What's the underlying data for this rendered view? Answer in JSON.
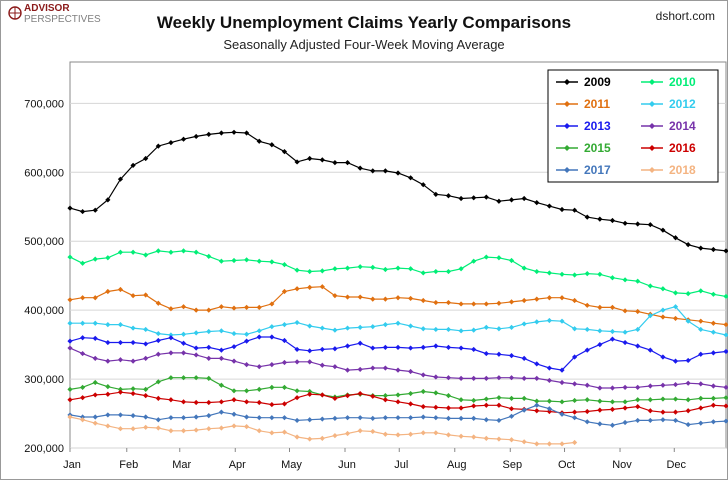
{
  "brand": {
    "line1": "ADVISOR",
    "line2": "PERSPECTIVES",
    "source": "dshort.com"
  },
  "colors": {
    "background": "#ffffff",
    "frame": "#999999",
    "brand_red": "#8b1a1a",
    "brand_gray": "#7f7f7f"
  },
  "chart_data": {
    "type": "line",
    "title": "Weekly Unemployment Claims Yearly Comparisons",
    "subtitle": "Seasonally Adjusted Four-Week Moving Average",
    "xlabel": "",
    "ylabel": "",
    "x_ticks": [
      "Jan",
      "Feb",
      "Mar",
      "Apr",
      "May",
      "Jun",
      "Jul",
      "Aug",
      "Sep",
      "Oct",
      "Nov",
      "Dec"
    ],
    "xlim": [
      1,
      53
    ],
    "ylim": [
      200000,
      760000
    ],
    "y_ticks": [
      200000,
      300000,
      400000,
      500000,
      600000,
      700000
    ],
    "y_tick_labels": [
      "200,000",
      "300,000",
      "400,000",
      "500,000",
      "600,000",
      "700,000"
    ],
    "grid": true,
    "legend_position": "top-right",
    "series": [
      {
        "name": "2009",
        "color": "#000000",
        "values": [
          548000,
          543000,
          545000,
          560000,
          590000,
          610000,
          620000,
          638000,
          643000,
          648000,
          652000,
          655000,
          657000,
          658000,
          657000,
          645000,
          640000,
          630000,
          615000,
          620000,
          618000,
          614000,
          614000,
          606000,
          602000,
          602000,
          599000,
          592000,
          582000,
          568000,
          566000,
          562000,
          563000,
          564000,
          558000,
          560000,
          562000,
          556000,
          551000,
          546000,
          545000,
          535000,
          532000,
          530000,
          526000,
          525000,
          524000,
          516000,
          505000,
          495000,
          490000,
          488000,
          486000,
          483000,
          474000
        ]
      },
      {
        "name": "2010",
        "color": "#00ee77",
        "values": [
          477000,
          468000,
          474000,
          476000,
          484000,
          484000,
          480000,
          486000,
          484000,
          486000,
          484000,
          478000,
          471000,
          472000,
          473000,
          471000,
          470000,
          466000,
          458000,
          456000,
          457000,
          460000,
          461000,
          463000,
          462000,
          459000,
          461000,
          460000,
          454000,
          456000,
          456000,
          460000,
          471000,
          477000,
          476000,
          472000,
          461000,
          456000,
          454000,
          452000,
          451000,
          453000,
          452000,
          447000,
          444000,
          442000,
          435000,
          431000,
          425000,
          424000,
          428000,
          423000,
          420000,
          414000,
          412000
        ]
      },
      {
        "name": "2011",
        "color": "#e07010",
        "values": [
          415000,
          418000,
          418000,
          427000,
          430000,
          421000,
          422000,
          410000,
          402000,
          405000,
          400000,
          400000,
          405000,
          403000,
          404000,
          404000,
          409000,
          427000,
          431000,
          433000,
          434000,
          421000,
          419000,
          419000,
          416000,
          416000,
          418000,
          417000,
          414000,
          411000,
          411000,
          409000,
          409000,
          409000,
          410000,
          412000,
          414000,
          416000,
          418000,
          418000,
          414000,
          407000,
          404000,
          404000,
          399000,
          398000,
          394000,
          390000,
          388000,
          386000,
          384000,
          381000,
          379000,
          375000,
          373000
        ]
      },
      {
        "name": "2012",
        "color": "#33ccee",
        "values": [
          381000,
          381000,
          381000,
          379000,
          379000,
          374000,
          372000,
          366000,
          364000,
          365000,
          367000,
          369000,
          370000,
          366000,
          365000,
          370000,
          376000,
          379000,
          382000,
          377000,
          374000,
          371000,
          374000,
          375000,
          376000,
          379000,
          381000,
          377000,
          373000,
          372000,
          372000,
          370000,
          371000,
          375000,
          373000,
          375000,
          380000,
          383000,
          385000,
          384000,
          373000,
          372000,
          370000,
          369000,
          368000,
          372000,
          392000,
          400000,
          405000,
          384000,
          372000,
          368000,
          364000,
          358000,
          354000
        ]
      },
      {
        "name": "2013",
        "color": "#1a1aee",
        "values": [
          355000,
          360000,
          359000,
          353000,
          353000,
          353000,
          351000,
          356000,
          360000,
          352000,
          345000,
          346000,
          342000,
          347000,
          355000,
          361000,
          361000,
          356000,
          343000,
          341000,
          343000,
          344000,
          348000,
          352000,
          345000,
          346000,
          346000,
          345000,
          346000,
          348000,
          346000,
          345000,
          343000,
          337000,
          336000,
          334000,
          330000,
          322000,
          316000,
          313000,
          332000,
          342000,
          350000,
          358000,
          353000,
          348000,
          342000,
          332000,
          326000,
          327000,
          336000,
          338000,
          340000,
          343000,
          345000
        ]
      },
      {
        "name": "2014",
        "color": "#7733aa",
        "values": [
          345000,
          337000,
          330000,
          326000,
          328000,
          326000,
          330000,
          336000,
          338000,
          338000,
          335000,
          330000,
          330000,
          326000,
          321000,
          318000,
          321000,
          324000,
          325000,
          325000,
          320000,
          318000,
          313000,
          314000,
          316000,
          316000,
          313000,
          311000,
          306000,
          303000,
          302000,
          301000,
          301000,
          301000,
          302000,
          302000,
          301000,
          301000,
          298000,
          295000,
          293000,
          291000,
          287000,
          287000,
          288000,
          288000,
          290000,
          291000,
          292000,
          294000,
          293000,
          290000,
          288000,
          285000,
          283000
        ]
      },
      {
        "name": "2015",
        "color": "#33aa33",
        "values": [
          285000,
          288000,
          295000,
          289000,
          285000,
          286000,
          285000,
          296000,
          302000,
          302000,
          302000,
          301000,
          291000,
          283000,
          283000,
          285000,
          288000,
          288000,
          283000,
          282000,
          277000,
          274000,
          277000,
          278000,
          276000,
          276000,
          277000,
          279000,
          282000,
          280000,
          276000,
          270000,
          269000,
          271000,
          273000,
          272000,
          272000,
          268000,
          268000,
          267000,
          269000,
          270000,
          268000,
          267000,
          267000,
          270000,
          270000,
          271000,
          271000,
          270000,
          272000,
          272000,
          273000,
          270000,
          269000
        ]
      },
      {
        "name": "2016",
        "color": "#cc0000",
        "values": [
          270000,
          273000,
          277000,
          278000,
          281000,
          279000,
          276000,
          272000,
          270000,
          267000,
          266000,
          266000,
          267000,
          270000,
          267000,
          266000,
          263000,
          264000,
          273000,
          278000,
          277000,
          272000,
          276000,
          279000,
          275000,
          270000,
          267000,
          264000,
          260000,
          259000,
          258000,
          258000,
          261000,
          262000,
          262000,
          257000,
          256000,
          254000,
          253000,
          251000,
          252000,
          253000,
          255000,
          256000,
          258000,
          260000,
          254000,
          252000,
          252000,
          254000,
          258000,
          262000,
          261000,
          255000,
          251000
        ]
      },
      {
        "name": "2017",
        "color": "#4477bb",
        "values": [
          248000,
          245000,
          245000,
          248000,
          248000,
          247000,
          245000,
          241000,
          244000,
          244000,
          245000,
          247000,
          252000,
          249000,
          245000,
          244000,
          244000,
          244000,
          240000,
          241000,
          242000,
          243000,
          244000,
          244000,
          243000,
          244000,
          244000,
          244000,
          245000,
          244000,
          243000,
          243000,
          243000,
          241000,
          240000,
          246000,
          255000,
          262000,
          257000,
          249000,
          244000,
          238000,
          235000,
          233000,
          237000,
          240000,
          240000,
          241000,
          240000,
          234000,
          236000,
          238000,
          239000,
          243000,
          245000
        ]
      },
      {
        "name": "2018",
        "color": "#f4b482",
        "values": [
          245000,
          241000,
          236000,
          232000,
          228000,
          228000,
          230000,
          229000,
          225000,
          225000,
          226000,
          228000,
          229000,
          232000,
          231000,
          225000,
          222000,
          223000,
          216000,
          213000,
          214000,
          218000,
          221000,
          225000,
          224000,
          220000,
          219000,
          220000,
          222000,
          222000,
          219000,
          217000,
          216000,
          214000,
          213000,
          212000,
          209000,
          206000,
          206000,
          206000,
          208000
        ]
      }
    ]
  }
}
